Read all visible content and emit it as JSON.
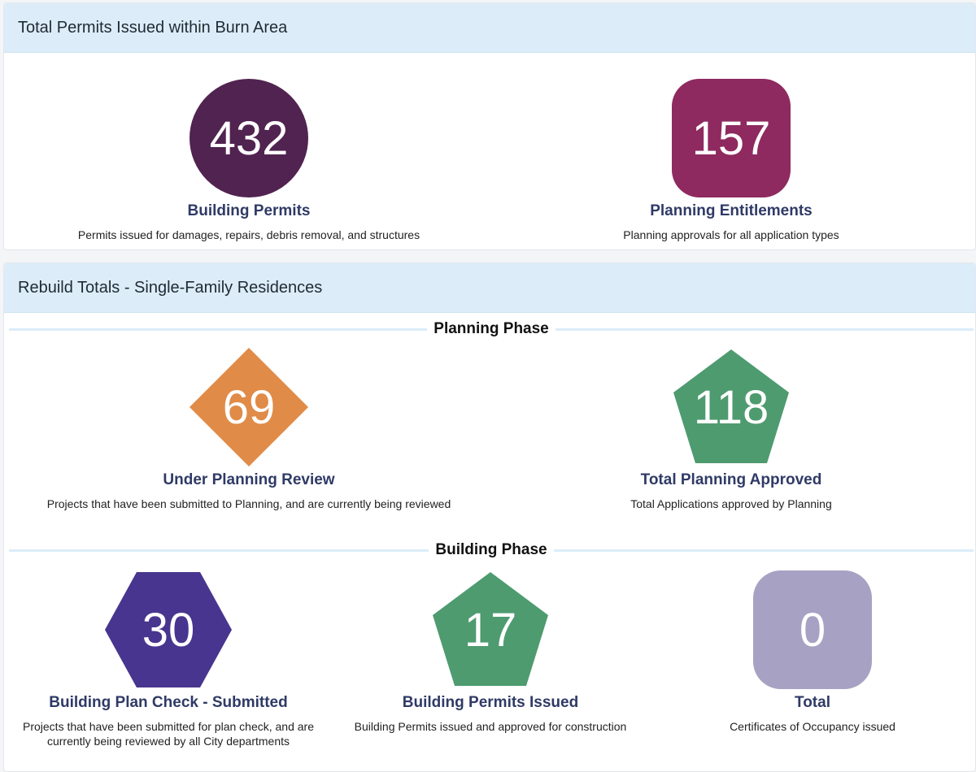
{
  "permits_section": {
    "title": "Total Permits Issued within Burn Area",
    "stats": [
      {
        "value": "432",
        "title": "Building Permits",
        "description": "Permits issued for damages, repairs, debris removal, and structures",
        "color": "#512350",
        "shape": "circle"
      },
      {
        "value": "157",
        "title": "Planning Entitlements",
        "description": "Planning approvals for all application types",
        "color": "#8e2a5f",
        "shape": "rounded-square"
      }
    ]
  },
  "rebuild_section": {
    "title": "Rebuild Totals - Single-Family Residences",
    "planning_phase": {
      "label": "Planning Phase",
      "stats": [
        {
          "value": "69",
          "title": "Under Planning Review",
          "description": "Projects that have been submitted to Planning, and are currently being reviewed",
          "color": "#e08b48",
          "shape": "diamond"
        },
        {
          "value": "118",
          "title": "Total Planning Approved",
          "description": "Total Applications approved by Planning",
          "color": "#4e9b70",
          "shape": "pentagon"
        }
      ]
    },
    "building_phase": {
      "label": "Building Phase",
      "stats": [
        {
          "value": "30",
          "title": "Building Plan Check - Submitted",
          "description": "Projects that have been submitted for plan check, and are currently being reviewed by all City departments",
          "color": "#48358f",
          "shape": "hexagon"
        },
        {
          "value": "17",
          "title": "Building Permits Issued",
          "description": "Building Permits issued and approved for construction",
          "color": "#4e9b70",
          "shape": "pentagon"
        },
        {
          "value": "0",
          "title": "Total",
          "description": "Certificates of Occupancy issued",
          "color": "#a7a2c3",
          "shape": "rounded-square"
        }
      ]
    }
  }
}
